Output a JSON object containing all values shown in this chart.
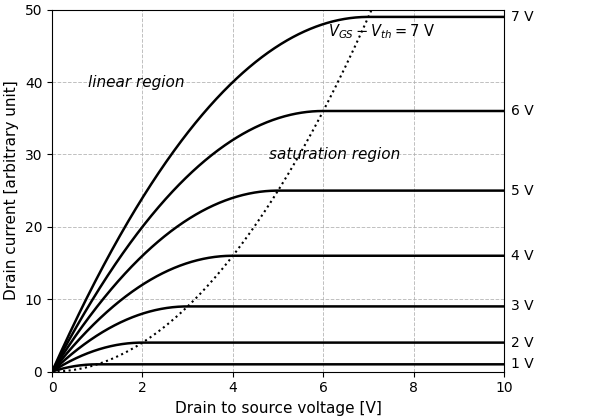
{
  "title": "",
  "xlabel": "Drain to source voltage [V]",
  "ylabel": "Drain current [arbitrary unit]",
  "xlim": [
    0,
    10
  ],
  "ylim": [
    0,
    50
  ],
  "xticks": [
    0,
    2,
    4,
    6,
    8,
    10
  ],
  "yticks": [
    0,
    10,
    20,
    30,
    40,
    50
  ],
  "vgs_labels": [
    "1 V",
    "2 V",
    "3 V",
    "4 V",
    "5 V",
    "6 V",
    "7 V"
  ],
  "vgs_vth_values": [
    1,
    2,
    3,
    4,
    5,
    6,
    7
  ],
  "k": 2.0,
  "linear_region_label": "linear region",
  "saturation_region_label": "saturation region",
  "top_label": "V_{GS}-V_{th}=7 V",
  "curve_color": "#000000",
  "dotted_color": "#000000",
  "bg_color": "#ffffff",
  "grid_color": "#b0b0b0",
  "label_fontsize": 11,
  "tick_fontsize": 10,
  "annotation_fontsize": 11,
  "curve_linewidth": 1.8,
  "dotted_linewidth": 1.5
}
